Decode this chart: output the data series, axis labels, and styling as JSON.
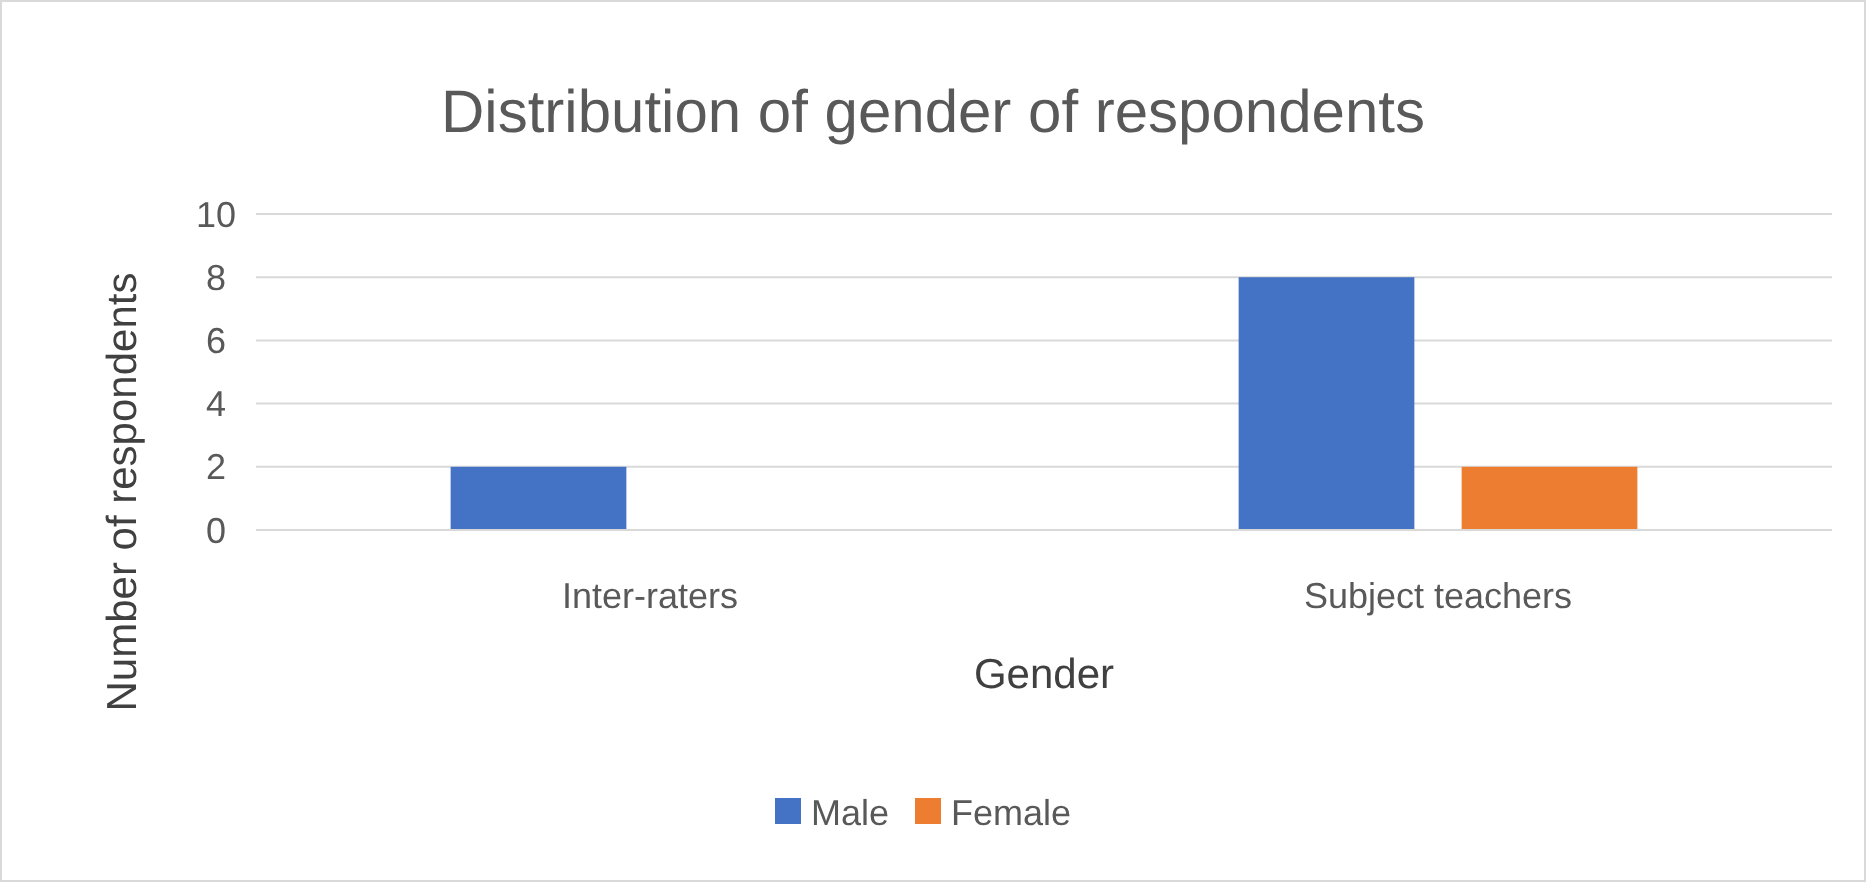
{
  "chart_data": {
    "type": "bar",
    "title": "Distribution of gender of respondents",
    "xlabel": "Gender",
    "ylabel": "Number of respondents",
    "categories": [
      "Inter-raters",
      "Subject teachers"
    ],
    "series": [
      {
        "name": "Male",
        "color": "#4472c4",
        "values": [
          2,
          8
        ]
      },
      {
        "name": "Female",
        "color": "#ed7d31",
        "values": [
          0,
          2
        ]
      }
    ],
    "ylim": [
      0,
      10
    ],
    "yticks": [
      0,
      2,
      4,
      6,
      8,
      10
    ],
    "grid": "y",
    "legend": "bottom"
  }
}
